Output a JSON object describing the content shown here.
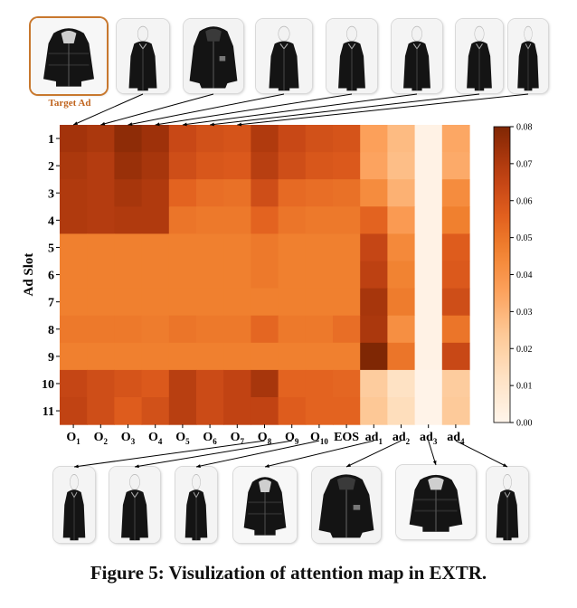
{
  "caption": "Figure 5: Visulization of attention map in EXTR.",
  "target_label": "Target Ad",
  "colors": {
    "low": "#fff5eb",
    "mid": "#f0821e",
    "high": "#7f2704",
    "connector": "#000000",
    "target_border": "#c8782e"
  },
  "top_images": [
    {
      "name": "target-ad-image",
      "icon": "puffer-jacket-icon"
    },
    {
      "name": "item-o1-image",
      "icon": "jacket-model-icon"
    },
    {
      "name": "item-o2-image",
      "icon": "jacket-icon"
    },
    {
      "name": "item-o3-image",
      "icon": "coat-model-icon"
    },
    {
      "name": "item-o4-image",
      "icon": "coat-model-icon"
    },
    {
      "name": "item-o5-image",
      "icon": "coat-model-icon"
    },
    {
      "name": "item-o6-image",
      "icon": "coat-model-icon"
    },
    {
      "name": "item-o7-image",
      "icon": "coat-model-icon"
    }
  ],
  "bottom_images": [
    {
      "name": "item-o8-image",
      "icon": "coat-model-icon"
    },
    {
      "name": "item-o9-image",
      "icon": "coat-model-icon"
    },
    {
      "name": "item-o10-image",
      "icon": "coat-model-icon"
    },
    {
      "name": "ad-1-image",
      "icon": "puffer-jacket-icon"
    },
    {
      "name": "ad-2-image",
      "icon": "jacket-icon"
    },
    {
      "name": "ad-3-image",
      "icon": "puffer-jacket-icon"
    },
    {
      "name": "ad-4-image",
      "icon": "coat-model-icon"
    }
  ],
  "chart_data": {
    "type": "heatmap",
    "ylabel": "Ad Slot",
    "x_categories": [
      {
        "base": "O",
        "sub": "1"
      },
      {
        "base": "O",
        "sub": "2"
      },
      {
        "base": "O",
        "sub": "3"
      },
      {
        "base": "O",
        "sub": "4"
      },
      {
        "base": "O",
        "sub": "5"
      },
      {
        "base": "O",
        "sub": "6"
      },
      {
        "base": "O",
        "sub": "7"
      },
      {
        "base": "O",
        "sub": "8"
      },
      {
        "base": "O",
        "sub": "9"
      },
      {
        "base": "O",
        "sub": "10"
      },
      {
        "base": "EOS",
        "sub": ""
      },
      {
        "base": "ad",
        "sub": "1"
      },
      {
        "base": "ad",
        "sub": "2"
      },
      {
        "base": "ad",
        "sub": "3"
      },
      {
        "base": "ad",
        "sub": "4"
      }
    ],
    "y_categories": [
      "1",
      "2",
      "3",
      "4",
      "5",
      "6",
      "7",
      "8",
      "9",
      "10",
      "11"
    ],
    "values": [
      [
        0.073,
        0.071,
        0.077,
        0.074,
        0.064,
        0.061,
        0.06,
        0.07,
        0.064,
        0.061,
        0.06,
        0.036,
        0.028,
        0.002,
        0.034
      ],
      [
        0.071,
        0.069,
        0.075,
        0.072,
        0.062,
        0.059,
        0.058,
        0.068,
        0.062,
        0.059,
        0.058,
        0.035,
        0.027,
        0.002,
        0.033
      ],
      [
        0.07,
        0.069,
        0.072,
        0.07,
        0.055,
        0.052,
        0.051,
        0.062,
        0.053,
        0.052,
        0.051,
        0.043,
        0.031,
        0.002,
        0.043
      ],
      [
        0.07,
        0.069,
        0.07,
        0.07,
        0.05,
        0.049,
        0.049,
        0.055,
        0.05,
        0.049,
        0.049,
        0.055,
        0.038,
        0.002,
        0.047
      ],
      [
        0.047,
        0.047,
        0.047,
        0.047,
        0.047,
        0.047,
        0.047,
        0.049,
        0.047,
        0.047,
        0.047,
        0.065,
        0.044,
        0.002,
        0.057
      ],
      [
        0.047,
        0.047,
        0.047,
        0.047,
        0.047,
        0.047,
        0.047,
        0.049,
        0.047,
        0.047,
        0.047,
        0.067,
        0.046,
        0.002,
        0.058
      ],
      [
        0.047,
        0.047,
        0.047,
        0.047,
        0.047,
        0.047,
        0.047,
        0.047,
        0.047,
        0.047,
        0.047,
        0.072,
        0.048,
        0.002,
        0.062
      ],
      [
        0.049,
        0.049,
        0.049,
        0.048,
        0.05,
        0.049,
        0.049,
        0.054,
        0.049,
        0.049,
        0.052,
        0.071,
        0.042,
        0.002,
        0.05
      ],
      [
        0.047,
        0.047,
        0.047,
        0.047,
        0.047,
        0.047,
        0.047,
        0.047,
        0.047,
        0.047,
        0.047,
        0.08,
        0.05,
        0.002,
        0.064
      ],
      [
        0.065,
        0.062,
        0.06,
        0.058,
        0.068,
        0.063,
        0.066,
        0.072,
        0.055,
        0.055,
        0.054,
        0.022,
        0.012,
        0.001,
        0.022
      ],
      [
        0.066,
        0.062,
        0.057,
        0.061,
        0.068,
        0.063,
        0.066,
        0.066,
        0.057,
        0.055,
        0.055,
        0.024,
        0.014,
        0.001,
        0.023
      ]
    ],
    "colorbar": {
      "range": [
        0.0,
        0.08
      ],
      "ticks": [
        "0.00",
        "0.01",
        "0.02",
        "0.03",
        "0.04",
        "0.05",
        "0.06",
        "0.07",
        "0.08"
      ],
      "colormap": "Oranges"
    }
  }
}
